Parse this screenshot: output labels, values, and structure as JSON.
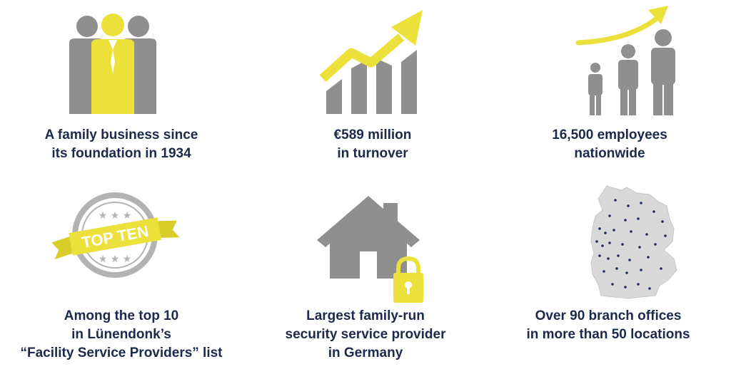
{
  "colors": {
    "gray": "#8f8f8f",
    "yellow": "#ece03b",
    "navy": "#1b2a4a",
    "map_fill": "#d9d9d9",
    "map_dot": "#1f2d5c"
  },
  "facts": [
    {
      "icon": "family-business-people-icon",
      "lines": [
        "A family business since",
        "its foundation in 1934"
      ]
    },
    {
      "icon": "growth-chart-icon",
      "lines": [
        "€589 million",
        "in turnover"
      ]
    },
    {
      "icon": "growing-employees-icon",
      "lines": [
        "16,500 employees",
        "nationwide"
      ]
    },
    {
      "icon": "top-ten-seal-icon",
      "badge_text": "TOP TEN",
      "lines": [
        "Among the top 10",
        "in Lünendonk’s",
        "“Facility Service Providers” list"
      ]
    },
    {
      "icon": "house-lock-icon",
      "lines": [
        "Largest family-run",
        "security service provider",
        "in Germany"
      ]
    },
    {
      "icon": "germany-map-icon",
      "lines": [
        "Over 90 branch offices",
        "in more than 50 locations"
      ]
    }
  ]
}
